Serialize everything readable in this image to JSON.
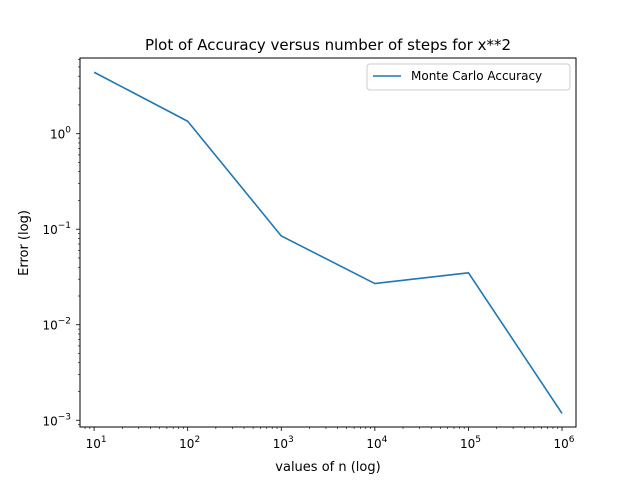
{
  "chart_data": {
    "type": "line",
    "title": "Plot of Accuracy versus number of steps for x**2",
    "xlabel": "values of n (log)",
    "ylabel": "Error (log)",
    "xscale": "log",
    "yscale": "log",
    "xlim": [
      7.07,
      1410000.0
    ],
    "ylim": [
      0.00085,
      6.2
    ],
    "grid": false,
    "legend_position": "upper right",
    "x_ticks": [
      {
        "value": 10,
        "base": "10",
        "exp": "1"
      },
      {
        "value": 100,
        "base": "10",
        "exp": "2"
      },
      {
        "value": 1000,
        "base": "10",
        "exp": "3"
      },
      {
        "value": 10000,
        "base": "10",
        "exp": "4"
      },
      {
        "value": 100000,
        "base": "10",
        "exp": "5"
      },
      {
        "value": 1000000,
        "base": "10",
        "exp": "6"
      }
    ],
    "y_ticks": [
      {
        "value": 1,
        "base": "10",
        "exp": "0"
      },
      {
        "value": 0.1,
        "base": "10",
        "exp": "−1"
      },
      {
        "value": 0.01,
        "base": "10",
        "exp": "−2"
      },
      {
        "value": 0.001,
        "base": "10",
        "exp": "−3"
      }
    ],
    "series": [
      {
        "name": "Monte Carlo Accuracy",
        "color": "#1f77b4",
        "x": [
          10,
          100,
          1000,
          10000,
          100000,
          1000000
        ],
        "y": [
          4.4,
          1.35,
          0.085,
          0.027,
          0.035,
          0.00118
        ]
      }
    ]
  }
}
